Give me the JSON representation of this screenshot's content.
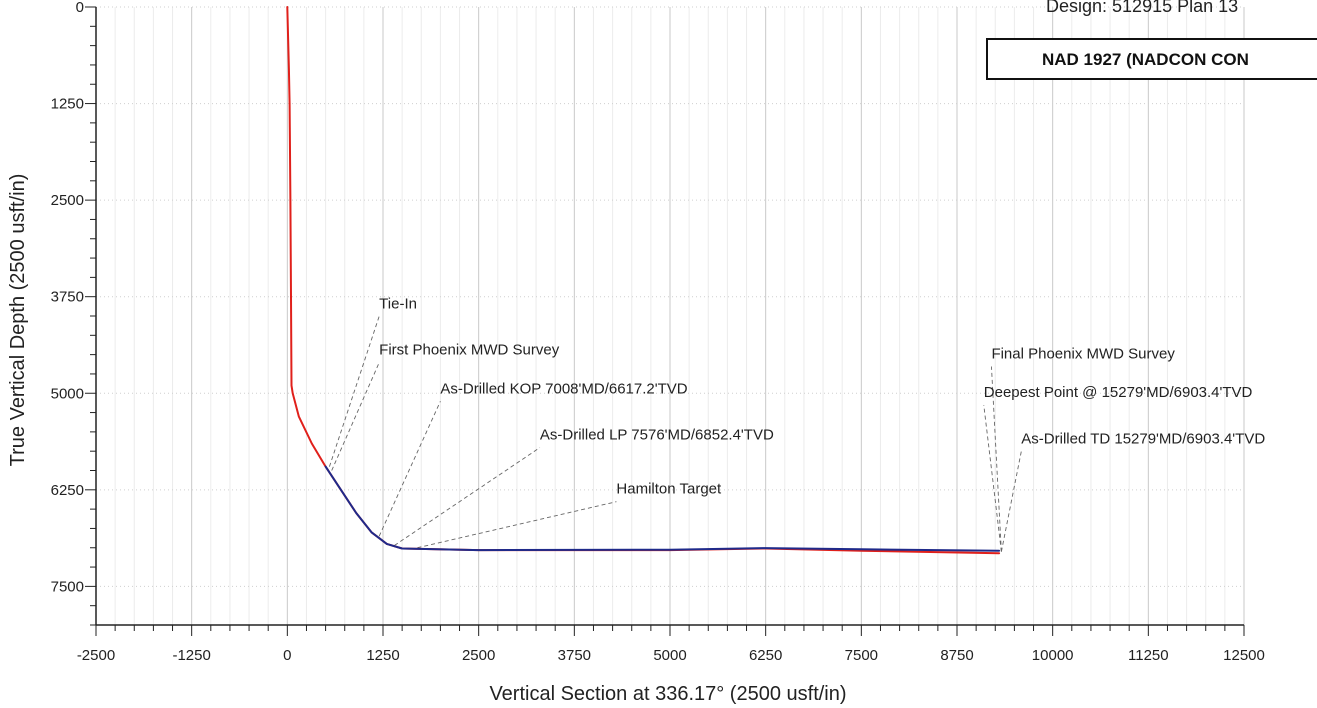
{
  "header": {
    "design": "Design:  512915 Plan 13",
    "datum": "NAD 1927 (NADCON CON"
  },
  "chart_data": {
    "type": "line",
    "xlabel": "Vertical Section at 336.17° (2500 usft/in)",
    "ylabel": "True Vertical Depth (2500 usft/in)",
    "xlim": [
      -2500,
      12500
    ],
    "ylim": [
      8000,
      0
    ],
    "y_inverted": true,
    "grid": true,
    "xticks": [
      -2500,
      -1250,
      0,
      1250,
      2500,
      3750,
      5000,
      6250,
      7500,
      8750,
      10000,
      11250,
      12500
    ],
    "yticks": [
      0,
      1250,
      2500,
      3750,
      5000,
      6250,
      7500
    ],
    "series": [
      {
        "color": "#e0201b",
        "points": [
          [
            0,
            0
          ],
          [
            20,
            800
          ],
          [
            30,
            1250
          ],
          [
            40,
            2500
          ],
          [
            48,
            3750
          ],
          [
            55,
            4900
          ],
          [
            70,
            5000
          ],
          [
            150,
            5300
          ],
          [
            320,
            5650
          ],
          [
            500,
            5950
          ],
          [
            700,
            6250
          ],
          [
            900,
            6550
          ],
          [
            1100,
            6800
          ],
          [
            1300,
            6950
          ],
          [
            1500,
            7010
          ],
          [
            2500,
            7030
          ],
          [
            5000,
            7030
          ],
          [
            6250,
            7010
          ],
          [
            7500,
            7040
          ],
          [
            9300,
            7070
          ]
        ]
      },
      {
        "color": "#1f2a8a",
        "points": [
          [
            500,
            5950
          ],
          [
            700,
            6250
          ],
          [
            900,
            6550
          ],
          [
            1100,
            6800
          ],
          [
            1300,
            6950
          ],
          [
            1500,
            7010
          ],
          [
            2500,
            7030
          ],
          [
            5000,
            7025
          ],
          [
            6250,
            7005
          ],
          [
            7500,
            7020
          ],
          [
            9300,
            7040
          ]
        ]
      }
    ],
    "annotations": [
      {
        "text": "Tie-In",
        "at": [
          550,
          5950
        ],
        "label_at": [
          1200,
          3900
        ]
      },
      {
        "text": "First Phoenix MWD Survey",
        "at": [
          580,
          6000
        ],
        "label_at": [
          1200,
          4500
        ]
      },
      {
        "text": "As-Drilled KOP 7008'MD/6617.2'TVD",
        "at": [
          1200,
          6850
        ],
        "label_at": [
          2000,
          5000
        ]
      },
      {
        "text": "As-Drilled LP 7576'MD/6852.4'TVD",
        "at": [
          1400,
          6970
        ],
        "label_at": [
          3300,
          5600
        ]
      },
      {
        "text": "Hamilton Target",
        "at": [
          1700,
          7000
        ],
        "label_at": [
          4300,
          6300
        ]
      },
      {
        "text": "Final Phoenix MWD Survey",
        "at": [
          9330,
          7050
        ],
        "label_at": [
          9200,
          4550
        ]
      },
      {
        "text": "Deepest Point @ 15279'MD/6903.4'TVD",
        "at": [
          9330,
          7050
        ],
        "label_at": [
          9100,
          5050
        ]
      },
      {
        "text": "As-Drilled TD 15279'MD/6903.4'TVD",
        "at": [
          9330,
          7050
        ],
        "label_at": [
          9590,
          5650
        ]
      }
    ]
  }
}
